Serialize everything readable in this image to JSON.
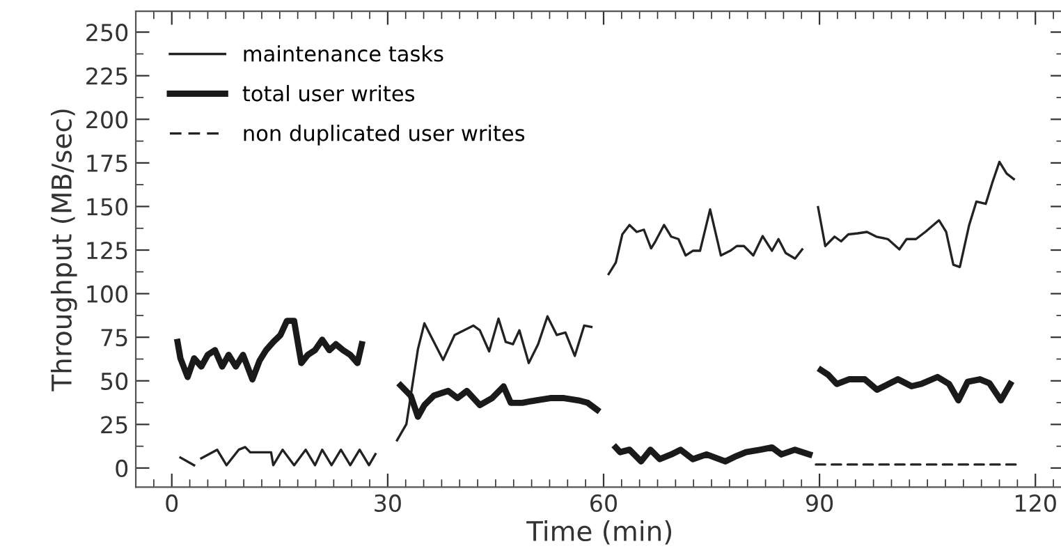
{
  "chart_data": {
    "type": "line",
    "xlabel": "Time (min)",
    "ylabel": "Throughput (MB/sec)",
    "xlim": [
      -5,
      124
    ],
    "xticks": [
      0,
      30,
      60,
      90,
      120
    ],
    "ylim": [
      -11,
      262
    ],
    "yticks": [
      0,
      25,
      50,
      75,
      100,
      125,
      150,
      175,
      200,
      225,
      250
    ],
    "grid": false,
    "legend": "top left",
    "series": [
      {
        "name": "maintenance tasks",
        "color": "#222222",
        "line_style": "solid",
        "x": [
          1.2,
          3.1,
          3.6,
          4.1,
          6.3,
          7.6,
          9.3,
          10.2,
          10.9,
          13.8,
          14.1,
          15.4,
          17.0,
          18.6,
          19.9,
          20.9,
          22.2,
          23.5,
          24.8,
          26.1,
          27.4,
          28.3,
          29.8,
          31.3,
          32.6,
          33.5,
          34.2,
          35.1,
          36.1,
          37.7,
          39.3,
          40.6,
          41.9,
          42.8,
          44.1,
          45.4,
          46.4,
          47.4,
          48.3,
          49.6,
          50.9,
          52.2,
          53.5,
          54.7,
          56.0,
          57.3,
          58.3,
          59.5,
          60.7,
          61.7,
          62.6,
          63.6,
          64.6,
          65.6,
          66.6,
          67.2,
          68.4,
          69.4,
          70.4,
          71.4,
          72.4,
          73.4,
          74.8,
          76.3,
          77.6,
          78.5,
          79.5,
          80.8,
          82.1,
          83.4,
          84.3,
          85.3,
          86.6,
          87.6,
          88.7,
          89.8,
          90.8,
          92.1,
          93.0,
          94.0,
          95.3,
          96.6,
          97.9,
          99.5,
          101.1,
          102.1,
          103.4,
          104.7,
          106.6,
          107.6,
          108.6,
          109.5,
          110.8,
          111.8,
          113.1,
          114.0,
          115.0,
          116.0,
          117.0
        ],
        "values": [
          6,
          1.6,
          null,
          5.6,
          10.5,
          1.6,
          10.5,
          12,
          9,
          9,
          1.6,
          10.5,
          1.6,
          10.5,
          1.6,
          10.5,
          1.6,
          10.5,
          1.6,
          10.5,
          1.6,
          8,
          null,
          15.9,
          25.2,
          49.4,
          68.1,
          83.0,
          74.9,
          62.0,
          76.3,
          79.0,
          81.7,
          79.0,
          66.9,
          85.7,
          72.3,
          71.0,
          79.0,
          60.2,
          71.0,
          87.0,
          76.3,
          77.7,
          64.3,
          81.7,
          80.9,
          null,
          111.2,
          117.9,
          134.0,
          139.4,
          135.4,
          136.7,
          126.0,
          130.0,
          139.4,
          132.7,
          131.3,
          121.9,
          124.6,
          124.6,
          148.3,
          121.9,
          124.6,
          127.3,
          127.3,
          121.9,
          133.0,
          124.6,
          131.3,
          123.3,
          120.1,
          125.4,
          null,
          149.6,
          127.3,
          132.7,
          130.0,
          134.0,
          134.6,
          135.4,
          132.7,
          131.3,
          125.4,
          131.3,
          131.3,
          135.4,
          142.1,
          135.4,
          116.6,
          115.3,
          139.4,
          152.8,
          151.5,
          163.5,
          175.6,
          168.9,
          165.7
        ]
      },
      {
        "name": "total user writes",
        "color": "#1a1a1a",
        "line_style": "solid",
        "x": [
          0.8,
          1.2,
          2.2,
          3.1,
          4.1,
          5.0,
          6.0,
          7.0,
          7.9,
          8.9,
          9.9,
          11.2,
          12.2,
          13.1,
          14.1,
          15.1,
          16.0,
          17.0,
          18.0,
          18.9,
          19.9,
          20.9,
          21.9,
          22.8,
          23.8,
          24.8,
          25.8,
          26.4,
          29.0,
          31.8,
          33.2,
          34.2,
          35.1,
          36.4,
          38.4,
          39.7,
          41.0,
          42.8,
          44.5,
          46.1,
          47.1,
          48.7,
          50.6,
          52.6,
          54.5,
          56.5,
          57.8,
          59.1,
          60.5,
          61.7,
          62.3,
          63.6,
          65.2,
          66.5,
          67.8,
          69.4,
          70.7,
          72.4,
          74.3,
          76.9,
          78.2,
          79.8,
          81.8,
          83.4,
          84.7,
          86.6,
          88.6,
          89.4,
          90.2,
          91.2,
          92.4,
          94.1,
          96.3,
          98.0,
          99.6,
          100.9,
          102.8,
          104.1,
          106.4,
          108.0,
          109.3,
          110.6,
          112.3,
          113.6,
          115.2,
          116.5
        ],
        "values": [
          72.3,
          62.9,
          52.2,
          62.9,
          58.2,
          64.9,
          67.6,
          58.2,
          64.9,
          58.2,
          64.9,
          50.8,
          61.6,
          67.6,
          72.3,
          76.3,
          84.4,
          84.4,
          60.2,
          64.9,
          67.6,
          73.6,
          67.6,
          71.0,
          67.6,
          64.9,
          60.2,
          71.0,
          null,
          47.4,
          41.5,
          29.4,
          36.1,
          41.5,
          44.2,
          40.1,
          44.2,
          36.1,
          40.1,
          46.8,
          37.4,
          37.4,
          38.8,
          40.1,
          40.1,
          38.8,
          37.4,
          33.4,
          null,
          11.8,
          9.1,
          10.5,
          3.8,
          10.5,
          5.1,
          7.8,
          10.5,
          5.1,
          7.8,
          3.8,
          6.4,
          9.1,
          10.5,
          11.8,
          7.8,
          10.5,
          7.8,
          null,
          56.2,
          53.5,
          48.2,
          50.9,
          50.9,
          44.9,
          48.2,
          50.9,
          46.9,
          48.2,
          52.2,
          48.2,
          38.8,
          49.5,
          50.9,
          48.7,
          38.8,
          48.2
        ]
      },
      {
        "name": "non duplicated user writes",
        "color": "#222222",
        "line_style": "dashed",
        "x": [
          89.5,
          117.6
        ],
        "values": [
          2,
          2
        ]
      }
    ]
  }
}
